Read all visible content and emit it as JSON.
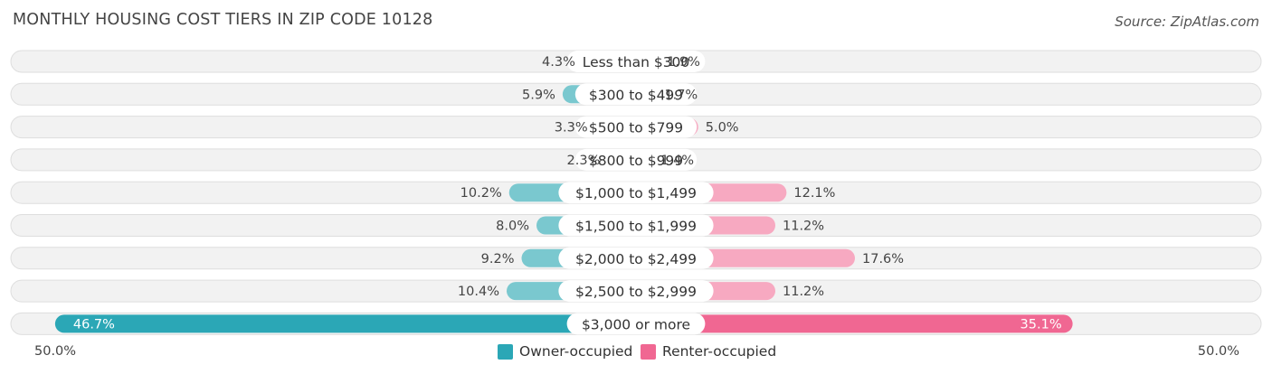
{
  "header": {
    "title": "MONTHLY HOUSING COST TIERS IN ZIP CODE 10128",
    "source": "Source: ZipAtlas.com"
  },
  "colors": {
    "owner": "#7ac8cf",
    "owner_strong": "#2ba7b6",
    "renter": "#f7a9c1",
    "renter_strong": "#f06792",
    "track": "#f2f2f2",
    "track_border": "#dedede"
  },
  "legend": {
    "owner_label": "Owner-occupied",
    "renter_label": "Renter-occupied"
  },
  "axis": {
    "left_label": "50.0%",
    "right_label": "50.0%"
  },
  "chart_data": {
    "type": "bar",
    "orientation": "horizontal-diverging",
    "title": "MONTHLY HOUSING COST TIERS IN ZIP CODE 10128",
    "xlim": [
      -50,
      50
    ],
    "categories": [
      "Less than $300",
      "$300 to $499",
      "$500 to $799",
      "$800 to $999",
      "$1,000 to $1,499",
      "$1,500 to $1,999",
      "$2,000 to $2,499",
      "$2,500 to $2,999",
      "$3,000 or more"
    ],
    "series": [
      {
        "name": "Owner-occupied",
        "values": [
          4.3,
          5.9,
          3.3,
          2.3,
          10.2,
          8.0,
          9.2,
          10.4,
          46.7
        ],
        "labels": [
          "4.3%",
          "5.9%",
          "3.3%",
          "2.3%",
          "10.2%",
          "8.0%",
          "9.2%",
          "10.4%",
          "46.7%"
        ]
      },
      {
        "name": "Renter-occupied",
        "values": [
          1.9,
          1.7,
          5.0,
          1.4,
          12.1,
          11.2,
          17.6,
          11.2,
          35.1
        ],
        "labels": [
          "1.9%",
          "1.7%",
          "5.0%",
          "1.4%",
          "12.1%",
          "11.2%",
          "17.6%",
          "11.2%",
          "35.1%"
        ]
      }
    ]
  }
}
